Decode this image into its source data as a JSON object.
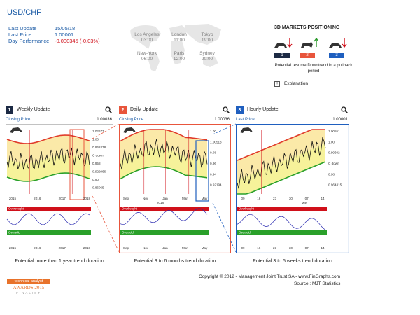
{
  "header": {
    "pair": "USD/CHF",
    "last_update_label": "Last Update",
    "last_update_value": "15/05/18",
    "last_price_label": "Last Price",
    "last_price_value": "1.00001",
    "day_perf_label": "Day Performance",
    "day_perf_value": "-0.000345 (-0.03%)"
  },
  "markets": [
    {
      "city": "Los Angeles",
      "time": "03:00"
    },
    {
      "city": "London",
      "time": "11:00"
    },
    {
      "city": "Tokyo",
      "time": "19:00"
    },
    {
      "city": "New-York",
      "time": "06:00"
    },
    {
      "city": "Paris",
      "time": "12:00"
    },
    {
      "city": "Sydney",
      "time": "20:00"
    }
  ],
  "positioning": {
    "title": "3D MARKETS POSITIONING",
    "boxes": [
      "1",
      "2",
      "3"
    ],
    "box_colors": [
      "#1c2a44",
      "#e8553c",
      "#1f5fbf"
    ],
    "note": "Potential resume Downtrend in a pullback period",
    "explanation_label": "Explanation"
  },
  "panels": [
    {
      "num": "1",
      "color": "#1c2a44",
      "title": "Weekly Update",
      "price_label": "Closing Price",
      "price_value": "1.00036",
      "y_labels": [
        "1.02677",
        "1.00",
        "0.962478",
        "C down",
        "0.958",
        "0.922066",
        "0.90",
        "0.86065"
      ],
      "x_labels": [
        "2015",
        "2016",
        "2017",
        "2018"
      ],
      "osc_top": "Overbought",
      "osc_bottom": "Oversold",
      "caption": "Potential more than 1 year trend duration"
    },
    {
      "num": "2",
      "color": "#e8553c",
      "title": "Daily Update",
      "price_label": "Closing Price",
      "price_value": "1.00036",
      "y_labels": [
        "1.00",
        "1.00513",
        "0.98",
        "0.96",
        "0.94",
        "0.92194"
      ],
      "x_labels": [
        "Sep",
        "Nov",
        "Jan",
        "Mar",
        "May"
      ],
      "x_sub": "2018",
      "osc_top": "Overbought",
      "osc_bottom": "Oversold",
      "caption": "Potential 3 to 6 months trend duration"
    },
    {
      "num": "3",
      "color": "#1f5fbf",
      "title": "Hourly Update",
      "price_label": "Last Price",
      "price_value": "1.00001",
      "y_labels": [
        "1.00551",
        "1.00",
        "0.99602",
        "C down",
        "0.98",
        "0.964315"
      ],
      "x_labels": [
        "09",
        "16",
        "23",
        "30",
        "07",
        "14"
      ],
      "x_sub": "May",
      "osc_top": "Overbought",
      "osc_bottom": "Oversold",
      "caption": "Potential 3 to 5 weeks trend duration"
    }
  ],
  "footer": {
    "copyright": "Copyright © 2012 - Management Joint Trust SA - www.FinGraphs.com",
    "source": "Source : MJT Statistics",
    "award_line1": "technical analyst",
    "award_line2": "AWARDS 2015",
    "award_line3": "FINALIST"
  }
}
